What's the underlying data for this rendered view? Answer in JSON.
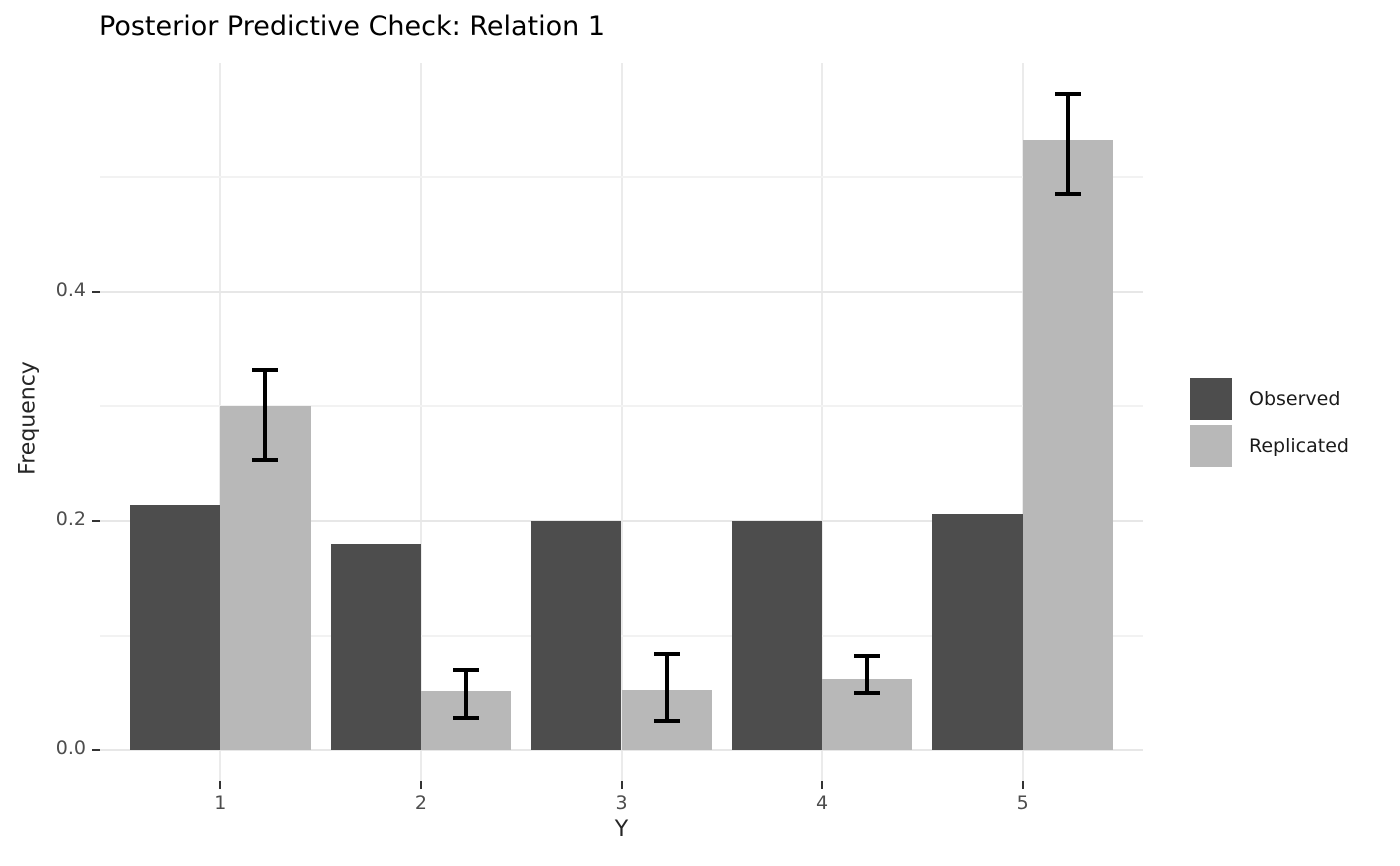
{
  "chart_data": {
    "type": "bar",
    "title": "Posterior Predictive Check: Relation 1",
    "xlabel": "Y",
    "ylabel": "Frequency",
    "categories": [
      "1",
      "2",
      "3",
      "4",
      "5"
    ],
    "series": [
      {
        "name": "Observed",
        "color": "#4D4D4D",
        "values": [
          0.214,
          0.18,
          0.2,
          0.2,
          0.206
        ]
      },
      {
        "name": "Replicated",
        "color": "#B8B8B8",
        "values": [
          0.3,
          0.052,
          0.053,
          0.062,
          0.532
        ],
        "error_bars": [
          {
            "low": 0.253,
            "high": 0.332
          },
          {
            "low": 0.028,
            "high": 0.07
          },
          {
            "low": 0.026,
            "high": 0.084
          },
          {
            "low": 0.05,
            "high": 0.082
          },
          {
            "low": 0.485,
            "high": 0.572
          }
        ]
      }
    ],
    "yticks": [
      {
        "value": 0.0,
        "label": "0.0"
      },
      {
        "value": 0.2,
        "label": "0.2"
      },
      {
        "value": 0.4,
        "label": "0.4"
      }
    ],
    "minor_yticks": [
      0.1,
      0.3,
      0.5
    ],
    "ylim": [
      -0.0266,
      0.5993
    ],
    "grid": true,
    "legend_position": "right",
    "legend_entries": [
      "Observed",
      "Replicated"
    ],
    "colors": {
      "background": "#FFFFFF",
      "grid_major": "#E7E7E7",
      "grid_minor": "#F2F2F2",
      "tick_mark": "#333333",
      "axis_text": "#4D4D4D",
      "axis_title": "#262626",
      "title_text": "#000000",
      "error_bar": "#000000"
    }
  }
}
